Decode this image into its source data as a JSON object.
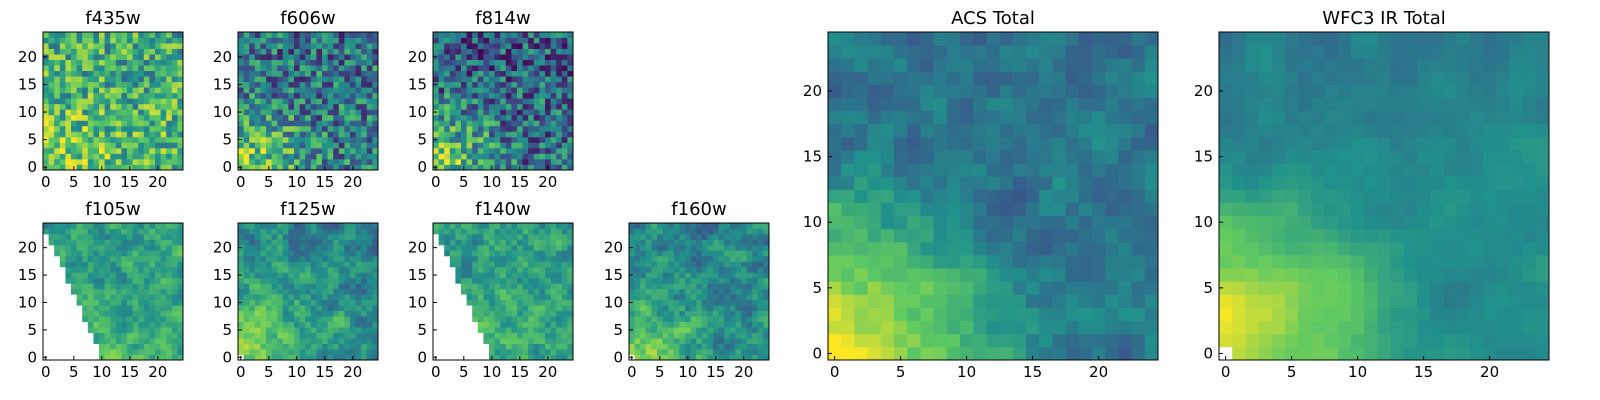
{
  "chart_data": [
    {
      "type": "heatmap",
      "title": "f435w",
      "xticks": [
        0,
        5,
        10,
        15,
        20
      ],
      "yticks": [
        0,
        5,
        10,
        15,
        20
      ],
      "xlim": [
        -0.5,
        24.5
      ],
      "ylim": [
        -0.5,
        24.5
      ],
      "grid": false,
      "level": "high, brightest along the bottom edge",
      "masked_corner": "none"
    },
    {
      "type": "heatmap",
      "title": "f606w",
      "xticks": [
        0,
        5,
        10,
        15,
        20
      ],
      "yticks": [
        0,
        5,
        10,
        15,
        20
      ],
      "xlim": [
        -0.5,
        24.5
      ],
      "ylim": [
        -0.5,
        24.5
      ],
      "grid": false,
      "level": "medium, bright at lower-left",
      "masked_corner": "none"
    },
    {
      "type": "heatmap",
      "title": "f814w",
      "xticks": [
        0,
        5,
        10,
        15,
        20
      ],
      "yticks": [
        0,
        5,
        10,
        15,
        20
      ],
      "xlim": [
        -0.5,
        24.5
      ],
      "ylim": [
        -0.5,
        24.5
      ],
      "grid": false,
      "level": "medium-low, bright at lower-left",
      "masked_corner": "none"
    },
    {
      "type": "heatmap",
      "title": "f105w",
      "xticks": [
        0,
        5,
        10,
        15,
        20
      ],
      "yticks": [
        0,
        5,
        10,
        15,
        20
      ],
      "xlim": [
        -0.5,
        24.5
      ],
      "ylim": [
        -0.5,
        24.5
      ],
      "grid": false,
      "level": "high",
      "masked_corner": "lower-left triangle (no data)"
    },
    {
      "type": "heatmap",
      "title": "f125w",
      "xticks": [
        0,
        5,
        10,
        15,
        20
      ],
      "yticks": [
        0,
        5,
        10,
        15,
        20
      ],
      "xlim": [
        -0.5,
        24.5
      ],
      "ylim": [
        -0.5,
        24.5
      ],
      "grid": false,
      "level": "medium-high",
      "masked_corner": "small lower-left corner"
    },
    {
      "type": "heatmap",
      "title": "f140w",
      "xticks": [
        0,
        5,
        10,
        15,
        20
      ],
      "yticks": [
        0,
        5,
        10,
        15,
        20
      ],
      "xlim": [
        -0.5,
        24.5
      ],
      "ylim": [
        -0.5,
        24.5
      ],
      "grid": false,
      "level": "high",
      "masked_corner": "lower-left triangle (no data)"
    },
    {
      "type": "heatmap",
      "title": "f160w",
      "xticks": [
        0,
        5,
        10,
        15,
        20
      ],
      "yticks": [
        0,
        5,
        10,
        15,
        20
      ],
      "xlim": [
        -0.5,
        24.5
      ],
      "ylim": [
        -0.5,
        24.5
      ],
      "grid": false,
      "level": "medium-high",
      "masked_corner": "small lower-left corner"
    },
    {
      "type": "heatmap",
      "title": "ACS Total",
      "xticks": [
        0,
        5,
        10,
        15,
        20
      ],
      "yticks": [
        0,
        5,
        10,
        15,
        20
      ],
      "xlim": [
        -0.5,
        24.5
      ],
      "ylim": [
        -0.5,
        24.5
      ],
      "grid": false,
      "level": "medium, bright yellow at lower-left",
      "masked_corner": "none"
    },
    {
      "type": "heatmap",
      "title": "WFC3 IR Total",
      "xticks": [
        0,
        5,
        10,
        15,
        20
      ],
      "yticks": [
        0,
        5,
        10,
        15,
        20
      ],
      "xlim": [
        -0.5,
        24.5
      ],
      "ylim": [
        -0.5,
        24.5
      ],
      "grid": false,
      "level": "medium-high, bright yellow at lower-left",
      "masked_corner": "tiny lower-left corner"
    }
  ],
  "colormap": [
    "#440154",
    "#3b528b",
    "#21918c",
    "#5ec962",
    "#fde725"
  ],
  "mask_color": "#ffffff"
}
